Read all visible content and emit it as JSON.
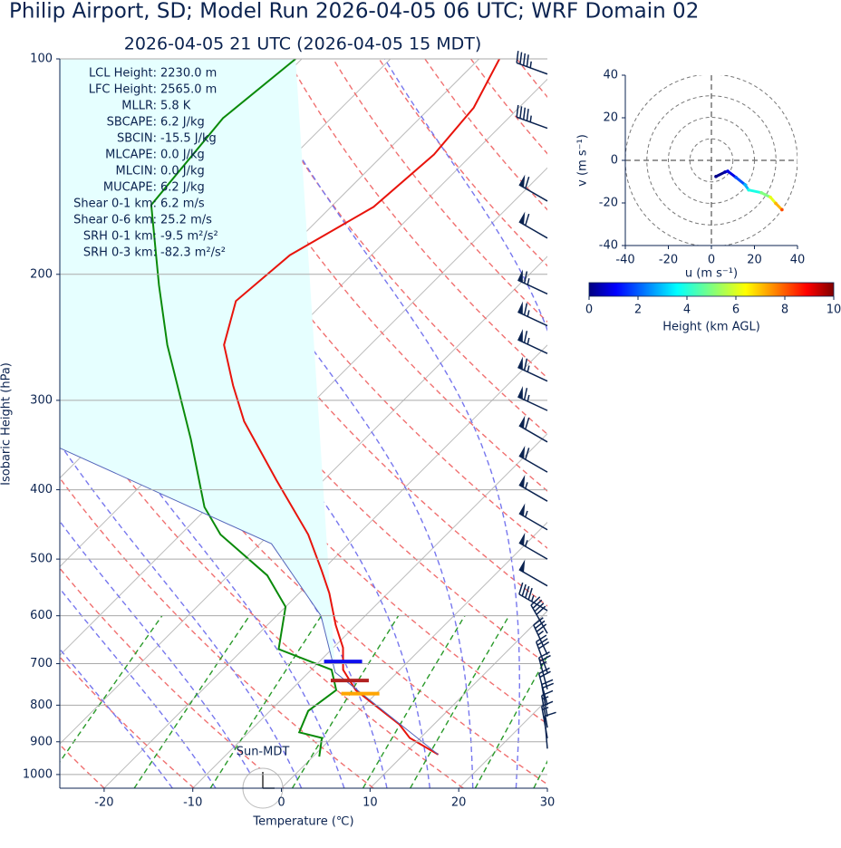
{
  "chart_data": [
    {
      "type": "skewt",
      "title": "Philip Airport, SD; Model Run 2026-04-05 06 UTC; WRF Domain 02",
      "subtitle": "2026-04-05 21 UTC  (2026-04-05 15 MDT)",
      "xlabel": "Temperature (℃)",
      "ylabel": "Isobaric Height (hPa)",
      "xlim": [
        -25,
        30
      ],
      "xticks": [
        -20,
        -10,
        0,
        10,
        20,
        30
      ],
      "ylim": [
        1045,
        100
      ],
      "yticks": [
        100,
        200,
        300,
        400,
        500,
        600,
        700,
        800,
        900,
        1000
      ],
      "log_y": true,
      "grid": true,
      "series": [
        {
          "color": "#e8140c",
          "y": [
            938,
            889,
            851,
            762,
            714,
            665,
            618,
            558,
            519,
            462,
            388,
            321,
            286,
            251,
            218,
            188,
            161,
            136,
            117,
            100
          ],
          "x": [
            13.9,
            8.8,
            6.1,
            -2.7,
            -6.4,
            -8.9,
            -12.3,
            -16.6,
            -20,
            -25.6,
            -35.3,
            -45.6,
            -50.9,
            -56.5,
            -60.1,
            -59.2,
            -55.2,
            -54.3,
            -55.1,
            -57.7
          ]
        },
        {
          "color": "#0a8a0a",
          "y": [
            944,
            889,
            873,
            815,
            762,
            714,
            668,
            583,
            527,
            462,
            423,
            340,
            251,
            207,
            160,
            121,
            100
          ],
          "x": [
            0.7,
            -1.1,
            -4.3,
            -5.7,
            -4.9,
            -7.7,
            -16,
            -20,
            -25.6,
            -35.5,
            -40.4,
            -49.6,
            -62.9,
            -70.6,
            -80.5,
            -82.2,
            -80.7
          ]
        },
        {
          "color": "#5566bb",
          "y": [
            938,
            720,
            600,
            476,
            350
          ],
          "x": [
            13.9,
            -7,
            -15,
            -28.7,
            -63.3
          ]
        }
      ],
      "levels": [
        {
          "y": 695,
          "color": "#1010ee"
        },
        {
          "y": 739,
          "color": "#b22222"
        },
        {
          "y": 771,
          "color": "#ffa500"
        }
      ],
      "winds": {
        "y": [
          105,
          125,
          158,
          178,
          213,
          236,
          258,
          282,
          310,
          343,
          378,
          415,
          455,
          500,
          545,
          590,
          635,
          680,
          720,
          760,
          800,
          830,
          860,
          890,
          920
        ],
        "speed": [
          45,
          45,
          60,
          60,
          65,
          65,
          65,
          65,
          65,
          60,
          60,
          55,
          55,
          55,
          50,
          45,
          40,
          35,
          30,
          25,
          20,
          20,
          15,
          15,
          10
        ],
        "direction": [
          290,
          290,
          300,
          300,
          295,
          295,
          295,
          295,
          295,
          300,
          300,
          300,
          300,
          300,
          300,
          300,
          330,
          335,
          340,
          345,
          345,
          350,
          350,
          350,
          355
        ]
      },
      "annotations": [
        [
          "LCL Height:",
          "2230.0 m"
        ],
        [
          "LFC Height:",
          "2565.0 m"
        ],
        [
          "MLLR:",
          "5.8 K"
        ],
        [
          "SBCAPE:",
          "6.2 J/kg"
        ],
        [
          "SBCIN:",
          "-15.5 J/kg"
        ],
        [
          "MLCAPE:",
          "0.0 J/kg"
        ],
        [
          "MLCIN:",
          "0.0 J/kg"
        ],
        [
          "MUCAPE:",
          "6.2 J/kg"
        ],
        [
          "Shear 0-1 km:",
          "6.2 m/s"
        ],
        [
          "Shear 0-6 km:",
          "25.2 m/s"
        ],
        [
          "SRH 0-1 km:",
          "-9.5 m²/s²"
        ],
        [
          "SRH 0-3 km:",
          "-82.3 m²/s²"
        ]
      ],
      "timezone_label": "Sun-MDT"
    },
    {
      "type": "hodograph",
      "xlabel": "u (m s⁻¹)",
      "ylabel": "v (m s⁻¹)",
      "xlim": [
        -40,
        40
      ],
      "ylim": [
        -40,
        40
      ],
      "xticks": [
        -40,
        -20,
        0,
        20,
        40
      ],
      "yticks": [
        -40,
        -20,
        0,
        20,
        40
      ],
      "u": [
        2.1,
        6.3,
        7.6,
        11.4,
        15.6,
        17.3,
        23.2,
        27.4,
        29.9,
        32.8
      ],
      "v": [
        -7.6,
        -5.5,
        -5.1,
        -8.0,
        -11.4,
        -13.9,
        -15.2,
        -17.3,
        -20.2,
        -23.2
      ],
      "heights": [
        0.1,
        0.5,
        1,
        2,
        3,
        4,
        5,
        6,
        7,
        8
      ],
      "colorbar": {
        "label": "Height (km AGL)",
        "lim": [
          0,
          10
        ],
        "ticks": [
          0,
          2,
          4,
          6,
          8,
          10
        ]
      }
    }
  ]
}
